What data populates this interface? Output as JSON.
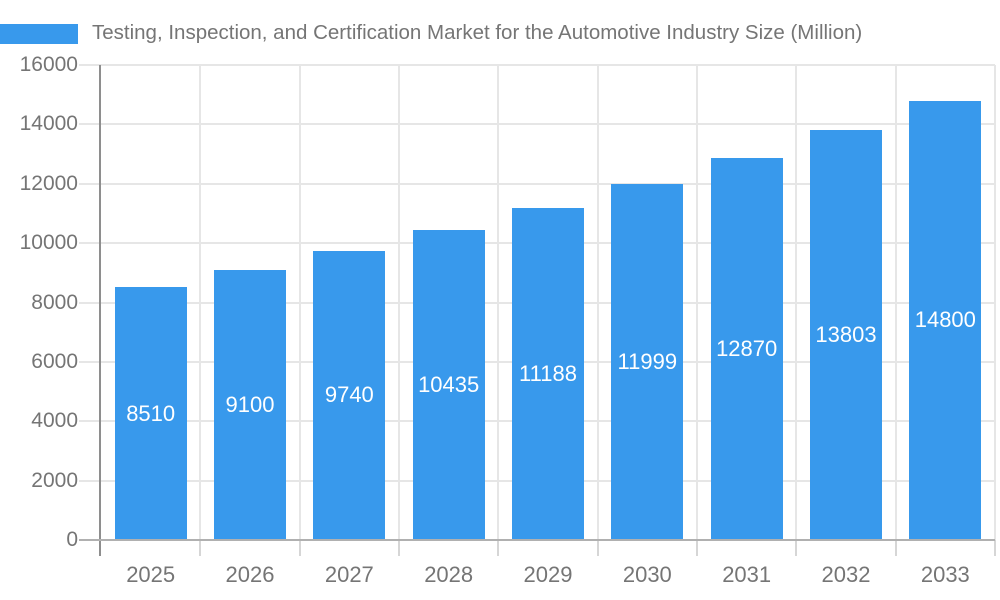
{
  "chart_data": {
    "type": "bar",
    "title": "Testing, Inspection, and Certification Market for the Automotive Industry Size (Million)",
    "categories": [
      "2025",
      "2026",
      "2027",
      "2028",
      "2029",
      "2030",
      "2031",
      "2032",
      "2033"
    ],
    "values": [
      8510,
      9100,
      9740,
      10435,
      11188,
      11999,
      12870,
      13803,
      14800
    ],
    "value_labels": [
      "8510",
      "9100",
      "9740",
      "10435",
      "11188",
      "11999",
      "12870",
      "13803",
      "14800"
    ],
    "xlabel": "",
    "ylabel": "",
    "ylim": [
      0,
      16000
    ],
    "ytick_step": 2000,
    "ytick_labels": [
      "0",
      "2000",
      "4000",
      "6000",
      "8000",
      "10000",
      "12000",
      "14000",
      "16000"
    ],
    "grid": "on",
    "legend_position": "top-left",
    "colors": {
      "bar": "#3899EC",
      "gridline": "#e6e6e6",
      "tick": "#d6d6d6",
      "y_axis_line": "#8e8e8e",
      "x_axis_line": "#b0b0b0",
      "axis_text": "#757575",
      "title_text": "#757575",
      "value_text": "#ffffff",
      "background": "#ffffff"
    }
  }
}
